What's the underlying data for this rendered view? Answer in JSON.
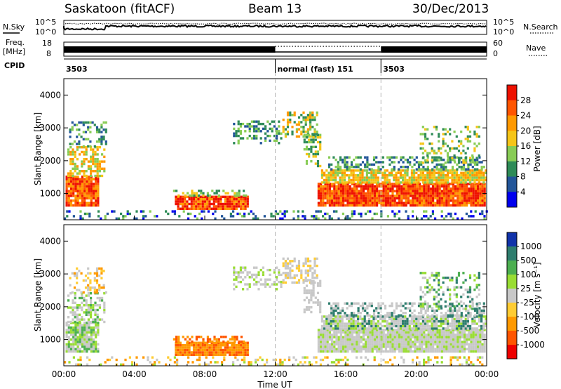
{
  "header": {
    "station": "Saskatoon (fitACF)",
    "beam": "Beam 13",
    "date": "30/Dec/2013"
  },
  "status_panels": {
    "nsky_label": "N.Sky",
    "nsearch_label": "N.Search",
    "noise_ticks": [
      "10^5",
      "10^0"
    ],
    "freq_label_1": "Freq.",
    "freq_label_2": "[MHz]",
    "freq_ticks": [
      "18",
      "8"
    ],
    "nave_label": "Nave",
    "nave_ticks": [
      "60",
      "0"
    ],
    "cpid_label": "CPID",
    "cpid_segments": [
      {
        "label": "3503",
        "start_hour": 0,
        "end_hour": 12
      },
      {
        "label": "normal (fast) 151",
        "start_hour": 12,
        "end_hour": 18
      },
      {
        "label": "3503",
        "start_hour": 18,
        "end_hour": 24
      }
    ]
  },
  "colorbars": {
    "power": {
      "label": "Power [dB]",
      "ticks": [
        "28",
        "24",
        "20",
        "16",
        "12",
        "8",
        "4"
      ],
      "colors": [
        "#ee1100",
        "#ff5500",
        "#ff9900",
        "#f5c518",
        "#88cc55",
        "#2e8b57",
        "#225599",
        "#0000ee"
      ]
    },
    "velocity": {
      "label": "Velocity [m s⁻¹]",
      "ticks": [
        "1000",
        "500",
        "100",
        "25",
        "-25",
        "-100",
        "-500",
        "-1000"
      ],
      "colors": [
        "#1133aa",
        "#2e7d6e",
        "#4caf50",
        "#99dd33",
        "#c8c8c8",
        "#ffcc33",
        "#ff9900",
        "#ff5500",
        "#ee0000"
      ]
    }
  },
  "chart_data": [
    {
      "type": "heatmap",
      "name": "power",
      "ylabel": "Slant Range [km]",
      "xlabel": "",
      "ylim": [
        200,
        4500
      ],
      "xlim_hours": [
        0,
        24
      ],
      "y_ticks": [
        "1000",
        "2000",
        "3000",
        "4000"
      ],
      "dashed_time_hours": [
        12,
        18
      ]
    },
    {
      "type": "heatmap",
      "name": "velocity",
      "ylabel": "Slant Range [km]",
      "xlabel": "Time UT",
      "ylim": [
        200,
        4500
      ],
      "xlim_hours": [
        0,
        24
      ],
      "y_ticks": [
        "1000",
        "2000",
        "3000",
        "4000"
      ],
      "x_ticks": [
        "00:00",
        "04:00",
        "08:00",
        "12:00",
        "16:00",
        "20:00",
        "00:00"
      ],
      "dashed_time_hours": [
        12,
        18
      ]
    }
  ]
}
